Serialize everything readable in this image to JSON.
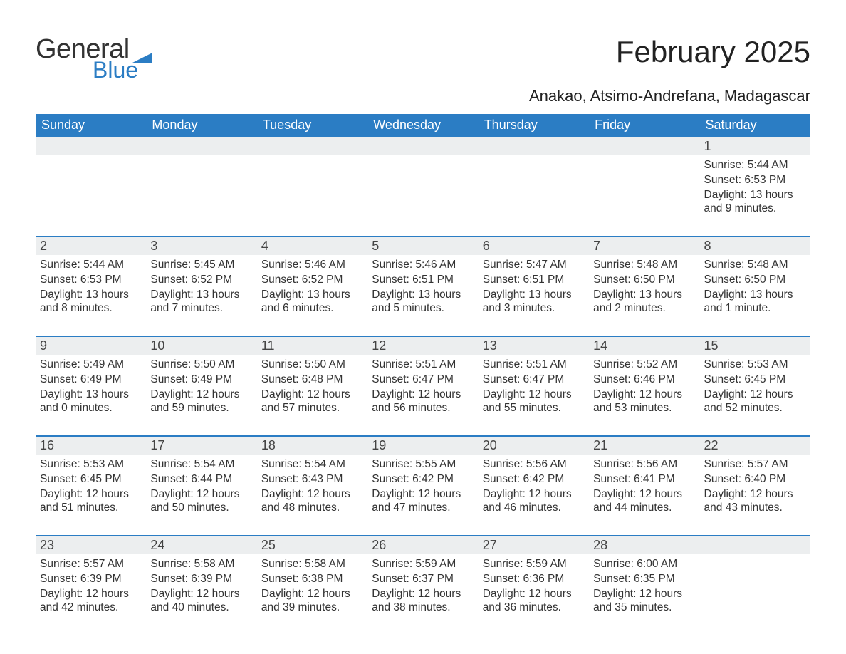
{
  "logo": {
    "text1": "General",
    "text2": "Blue",
    "flag_color": "#2b7dc4"
  },
  "title": "February 2025",
  "location": "Anakao, Atsimo-Andrefana, Madagascar",
  "colors": {
    "header_bg": "#2b7dc4",
    "header_text": "#ffffff",
    "daynum_bg": "#eceeef",
    "week_border": "#2b7dc4",
    "body_text": "#333333",
    "page_bg": "#ffffff"
  },
  "weekdays": [
    "Sunday",
    "Monday",
    "Tuesday",
    "Wednesday",
    "Thursday",
    "Friday",
    "Saturday"
  ],
  "labels": {
    "sunrise": "Sunrise:",
    "sunset": "Sunset:",
    "daylight": "Daylight:"
  },
  "weeks": [
    [
      null,
      null,
      null,
      null,
      null,
      null,
      {
        "n": "1",
        "sunrise": "5:44 AM",
        "sunset": "6:53 PM",
        "daylight": "13 hours and 9 minutes."
      }
    ],
    [
      {
        "n": "2",
        "sunrise": "5:44 AM",
        "sunset": "6:53 PM",
        "daylight": "13 hours and 8 minutes."
      },
      {
        "n": "3",
        "sunrise": "5:45 AM",
        "sunset": "6:52 PM",
        "daylight": "13 hours and 7 minutes."
      },
      {
        "n": "4",
        "sunrise": "5:46 AM",
        "sunset": "6:52 PM",
        "daylight": "13 hours and 6 minutes."
      },
      {
        "n": "5",
        "sunrise": "5:46 AM",
        "sunset": "6:51 PM",
        "daylight": "13 hours and 5 minutes."
      },
      {
        "n": "6",
        "sunrise": "5:47 AM",
        "sunset": "6:51 PM",
        "daylight": "13 hours and 3 minutes."
      },
      {
        "n": "7",
        "sunrise": "5:48 AM",
        "sunset": "6:50 PM",
        "daylight": "13 hours and 2 minutes."
      },
      {
        "n": "8",
        "sunrise": "5:48 AM",
        "sunset": "6:50 PM",
        "daylight": "13 hours and 1 minute."
      }
    ],
    [
      {
        "n": "9",
        "sunrise": "5:49 AM",
        "sunset": "6:49 PM",
        "daylight": "13 hours and 0 minutes."
      },
      {
        "n": "10",
        "sunrise": "5:50 AM",
        "sunset": "6:49 PM",
        "daylight": "12 hours and 59 minutes."
      },
      {
        "n": "11",
        "sunrise": "5:50 AM",
        "sunset": "6:48 PM",
        "daylight": "12 hours and 57 minutes."
      },
      {
        "n": "12",
        "sunrise": "5:51 AM",
        "sunset": "6:47 PM",
        "daylight": "12 hours and 56 minutes."
      },
      {
        "n": "13",
        "sunrise": "5:51 AM",
        "sunset": "6:47 PM",
        "daylight": "12 hours and 55 minutes."
      },
      {
        "n": "14",
        "sunrise": "5:52 AM",
        "sunset": "6:46 PM",
        "daylight": "12 hours and 53 minutes."
      },
      {
        "n": "15",
        "sunrise": "5:53 AM",
        "sunset": "6:45 PM",
        "daylight": "12 hours and 52 minutes."
      }
    ],
    [
      {
        "n": "16",
        "sunrise": "5:53 AM",
        "sunset": "6:45 PM",
        "daylight": "12 hours and 51 minutes."
      },
      {
        "n": "17",
        "sunrise": "5:54 AM",
        "sunset": "6:44 PM",
        "daylight": "12 hours and 50 minutes."
      },
      {
        "n": "18",
        "sunrise": "5:54 AM",
        "sunset": "6:43 PM",
        "daylight": "12 hours and 48 minutes."
      },
      {
        "n": "19",
        "sunrise": "5:55 AM",
        "sunset": "6:42 PM",
        "daylight": "12 hours and 47 minutes."
      },
      {
        "n": "20",
        "sunrise": "5:56 AM",
        "sunset": "6:42 PM",
        "daylight": "12 hours and 46 minutes."
      },
      {
        "n": "21",
        "sunrise": "5:56 AM",
        "sunset": "6:41 PM",
        "daylight": "12 hours and 44 minutes."
      },
      {
        "n": "22",
        "sunrise": "5:57 AM",
        "sunset": "6:40 PM",
        "daylight": "12 hours and 43 minutes."
      }
    ],
    [
      {
        "n": "23",
        "sunrise": "5:57 AM",
        "sunset": "6:39 PM",
        "daylight": "12 hours and 42 minutes."
      },
      {
        "n": "24",
        "sunrise": "5:58 AM",
        "sunset": "6:39 PM",
        "daylight": "12 hours and 40 minutes."
      },
      {
        "n": "25",
        "sunrise": "5:58 AM",
        "sunset": "6:38 PM",
        "daylight": "12 hours and 39 minutes."
      },
      {
        "n": "26",
        "sunrise": "5:59 AM",
        "sunset": "6:37 PM",
        "daylight": "12 hours and 38 minutes."
      },
      {
        "n": "27",
        "sunrise": "5:59 AM",
        "sunset": "6:36 PM",
        "daylight": "12 hours and 36 minutes."
      },
      {
        "n": "28",
        "sunrise": "6:00 AM",
        "sunset": "6:35 PM",
        "daylight": "12 hours and 35 minutes."
      },
      null
    ]
  ]
}
